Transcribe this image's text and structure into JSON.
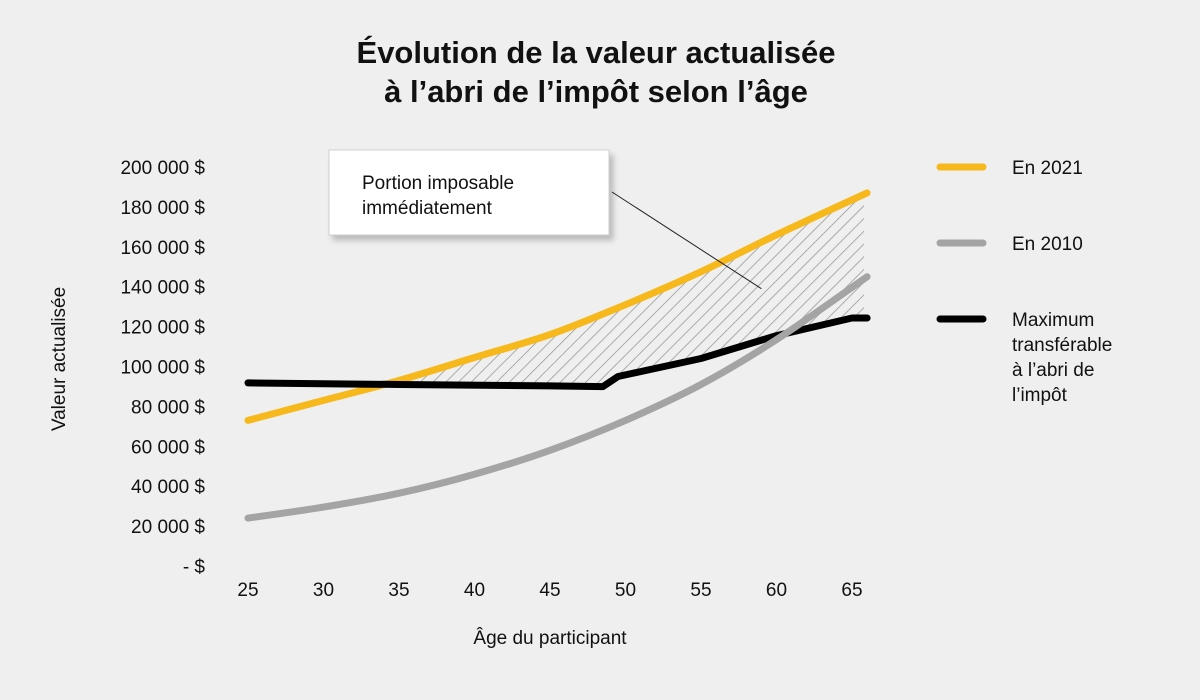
{
  "chart_data": {
    "type": "line",
    "title": [
      "Évolution de la valeur actualisée",
      "à l’abri de l’impôt selon l’âge"
    ],
    "xlabel": "Âge du participant",
    "ylabel": "Valeur actualisée",
    "x_ticks": [
      25,
      30,
      35,
      40,
      45,
      50,
      55,
      60,
      65
    ],
    "y_ticks": [
      {
        "value": 0,
        "label": "- $"
      },
      {
        "value": 20000,
        "label": "20 000 $"
      },
      {
        "value": 40000,
        "label": "40 000 $"
      },
      {
        "value": 60000,
        "label": "60 000 $"
      },
      {
        "value": 80000,
        "label": "80 000 $"
      },
      {
        "value": 100000,
        "label": "100 000 $"
      },
      {
        "value": 120000,
        "label": "120 000 $"
      },
      {
        "value": 140000,
        "label": "140 000 $"
      },
      {
        "value": 160000,
        "label": "160 000 $"
      },
      {
        "value": 180000,
        "label": "180 000 $"
      },
      {
        "value": 200000,
        "label": "200 000 $"
      }
    ],
    "xlim": [
      25,
      66
    ],
    "ylim": [
      0,
      200000
    ],
    "grid": false,
    "legend_position": "right",
    "series": [
      {
        "name": "En 2021",
        "color": "#f6b81a",
        "points": [
          [
            25,
            73000
          ],
          [
            30,
            83000
          ],
          [
            35,
            93000
          ],
          [
            40,
            104500
          ],
          [
            45,
            116000
          ],
          [
            50,
            131000
          ],
          [
            55,
            147500
          ],
          [
            60,
            166000
          ],
          [
            66,
            187000
          ]
        ]
      },
      {
        "name": "En 2010",
        "color": "#a4a4a4",
        "points": [
          [
            25,
            24000
          ],
          [
            30,
            29500
          ],
          [
            35,
            36500
          ],
          [
            40,
            46000
          ],
          [
            45,
            58000
          ],
          [
            50,
            73000
          ],
          [
            55,
            91000
          ],
          [
            60,
            113500
          ],
          [
            66,
            145000
          ]
        ]
      },
      {
        "name": "Maximum transférable à l’abri de l’impôt",
        "legend_lines": [
          "Maximum",
          "transférable",
          "à l’abri de",
          "l’impôt"
        ],
        "color": "#000000",
        "points": [
          [
            25,
            91800
          ],
          [
            35,
            91000
          ],
          [
            45,
            90300
          ],
          [
            48.5,
            89900
          ],
          [
            49.5,
            95000
          ],
          [
            55,
            104000
          ],
          [
            60,
            115500
          ],
          [
            65,
            124300
          ],
          [
            66,
            124300
          ]
        ]
      }
    ],
    "annotation": {
      "lines": [
        "Portion imposable",
        "immédiatement"
      ],
      "pointer_to": [
        59,
        139000
      ]
    }
  }
}
